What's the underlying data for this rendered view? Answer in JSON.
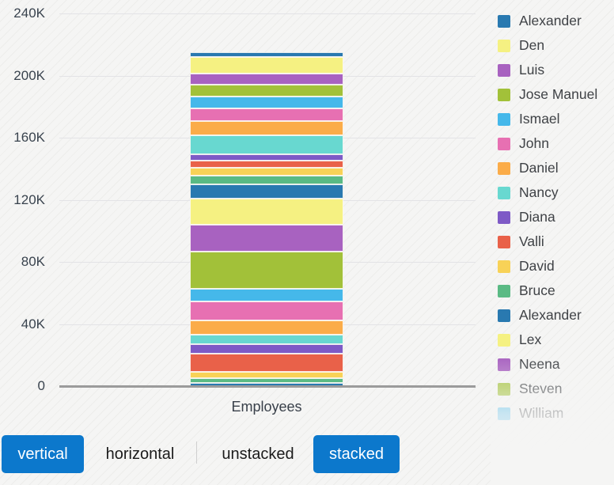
{
  "chart_data": {
    "type": "bar",
    "stacked": true,
    "orientation": "vertical",
    "xlabel": "Employees",
    "categories": [
      "Employees"
    ],
    "ylim": [
      0,
      240000
    ],
    "ytick_values": [
      0,
      40000,
      80000,
      120000,
      160000,
      200000,
      240000
    ],
    "ytick_labels": [
      "0",
      "40K",
      "80K",
      "120K",
      "160K",
      "200K",
      "240K"
    ],
    "grid": "horizontal",
    "legend_position": "right",
    "legend_scroll_fade": true,
    "stack_note": "segments listed top-to-bottom as rendered; segments whose legend label is scrolled out of view have an empty name",
    "series": [
      {
        "name": "Alexander",
        "color": "#2979b0",
        "value": 3100
      },
      {
        "name": "Den",
        "color": "#f5f182",
        "value": 11000
      },
      {
        "name": "Luis",
        "color": "#a862c0",
        "value": 6900
      },
      {
        "name": "Jose Manuel",
        "color": "#a2c139",
        "value": 7800
      },
      {
        "name": "Ismael",
        "color": "#45b8ea",
        "value": 7700
      },
      {
        "name": "John",
        "color": "#e770b2",
        "value": 8200
      },
      {
        "name": "Daniel",
        "color": "#fbac49",
        "value": 9000
      },
      {
        "name": "Nancy",
        "color": "#68d8d0",
        "value": 12008
      },
      {
        "name": "Diana",
        "color": "#7e5ac6",
        "value": 4200
      },
      {
        "name": "Valli",
        "color": "#e96149",
        "value": 4800
      },
      {
        "name": "David",
        "color": "#f8d257",
        "value": 4800
      },
      {
        "name": "Bruce",
        "color": "#5aba84",
        "value": 6000
      },
      {
        "name": "Alexander",
        "color": "#2979b0",
        "value": 9000
      },
      {
        "name": "Lex",
        "color": "#f5f182",
        "value": 17000
      },
      {
        "name": "Neena",
        "color": "#a862c0",
        "value": 17000
      },
      {
        "name": "Steven",
        "color": "#a2c139",
        "value": 24000
      },
      {
        "name": "William",
        "color": "#45b8ea",
        "value": 8300
      },
      {
        "name": "",
        "color": "#e770b2",
        "value": 12000
      },
      {
        "name": "",
        "color": "#fbac49",
        "value": 9300
      },
      {
        "name": "",
        "color": "#68d8d0",
        "value": 6300
      },
      {
        "name": "",
        "color": "#7e5ac6",
        "value": 5800
      },
      {
        "name": "",
        "color": "#e96149",
        "value": 12000
      },
      {
        "name": "",
        "color": "#f8d257",
        "value": 4200
      },
      {
        "name": "",
        "color": "#5aba84",
        "value": 2700
      },
      {
        "name": "",
        "color": "#2979b0",
        "value": 2200
      }
    ]
  },
  "toolbar": {
    "vertical_label": "vertical",
    "horizontal_label": "horizontal",
    "unstacked_label": "unstacked",
    "stacked_label": "stacked",
    "active_buttons": [
      "vertical",
      "stacked"
    ],
    "accent_color": "#0c78cc"
  }
}
